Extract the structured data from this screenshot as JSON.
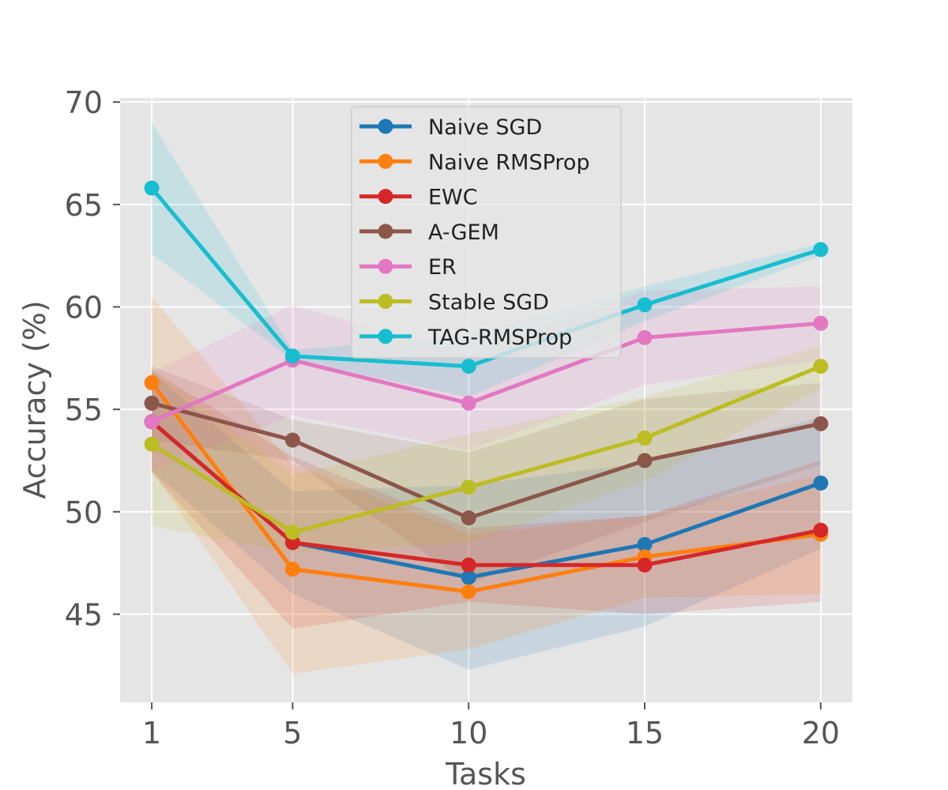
{
  "chart_data": {
    "type": "line",
    "title": "",
    "xlabel": "Tasks",
    "ylabel": "Accuracy (%)",
    "x": [
      1,
      5,
      10,
      15,
      20
    ],
    "x_ticks": [
      "1",
      "5",
      "10",
      "15",
      "20"
    ],
    "y_ticks": [
      "45",
      "50",
      "55",
      "60",
      "65",
      "70"
    ],
    "xlim": [
      0.1,
      20.9
    ],
    "ylim": [
      40.7,
      70.2
    ],
    "grid": true,
    "legend_position": "top-center",
    "series": [
      {
        "name": "Naive SGD",
        "color": "#1f77b4",
        "values": [
          54.4,
          48.5,
          46.8,
          48.4,
          51.4
        ],
        "lower": [
          52.0,
          46.0,
          42.3,
          44.4,
          48.2
        ],
        "upper": [
          56.8,
          51.0,
          51.3,
          52.4,
          54.6
        ]
      },
      {
        "name": "Naive RMSProp",
        "color": "#ff7f0e",
        "values": [
          56.3,
          47.2,
          46.1,
          47.8,
          48.9
        ],
        "lower": [
          52.0,
          42.1,
          43.3,
          45.8,
          46.0
        ],
        "upper": [
          60.5,
          52.3,
          48.9,
          49.8,
          51.8
        ]
      },
      {
        "name": "EWC",
        "color": "#d62728",
        "values": [
          54.4,
          48.5,
          47.4,
          47.4,
          49.1
        ],
        "lower": [
          51.9,
          44.3,
          45.6,
          45.0,
          45.6
        ],
        "upper": [
          56.9,
          52.7,
          49.2,
          49.8,
          52.5
        ]
      },
      {
        "name": "A-GEM",
        "color": "#8c564b",
        "values": [
          55.3,
          53.5,
          49.7,
          52.5,
          54.3
        ],
        "lower": [
          53.5,
          52.5,
          46.5,
          49.5,
          52.3
        ],
        "upper": [
          57.1,
          54.5,
          52.9,
          55.5,
          56.3
        ]
      },
      {
        "name": "ER",
        "color": "#e377c2",
        "values": [
          54.4,
          57.4,
          55.3,
          58.5,
          59.2
        ],
        "lower": [
          52.0,
          54.7,
          53.0,
          56.2,
          57.4
        ],
        "upper": [
          56.8,
          60.1,
          57.6,
          60.8,
          61.0
        ]
      },
      {
        "name": "Stable SGD",
        "color": "#bcbd22",
        "values": [
          53.3,
          49.0,
          51.2,
          53.6,
          57.1
        ],
        "lower": [
          49.3,
          48.0,
          48.5,
          51.5,
          56.0
        ],
        "upper": [
          57.0,
          51.8,
          53.8,
          55.6,
          58.1
        ]
      },
      {
        "name": "TAG-RMSProp",
        "color": "#17becf",
        "values": [
          65.8,
          57.6,
          57.1,
          60.1,
          62.8
        ],
        "lower": [
          62.6,
          57.4,
          55.6,
          59.3,
          62.5
        ],
        "upper": [
          69.0,
          57.9,
          58.6,
          61.0,
          63.1
        ]
      }
    ]
  }
}
